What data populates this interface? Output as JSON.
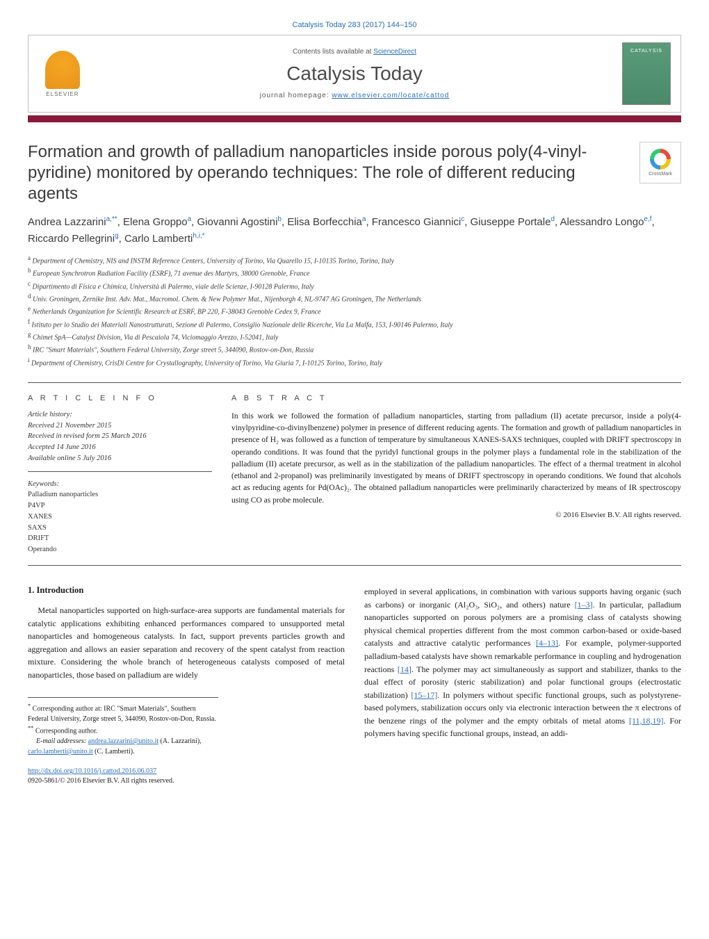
{
  "journal_ref": "Catalysis Today 283 (2017) 144–150",
  "header": {
    "contents_prefix": "Contents lists available at ",
    "contents_link": "ScienceDirect",
    "journal_name": "Catalysis Today",
    "homepage_prefix": "journal homepage: ",
    "homepage_link": "www.elsevier.com/locate/cattod",
    "elsevier_label": "ELSEVIER",
    "cover_title": "CATALYSIS"
  },
  "crossmark_label": "CrossMark",
  "title": "Formation and growth of palladium nanoparticles inside porous poly(4-vinyl-pyridine) monitored by operando techniques: The role of different reducing agents",
  "authors_html": "Andrea Lazzarini<sup>a,**</sup>, Elena Groppo<sup>a</sup>, Giovanni Agostini<sup>b</sup>, Elisa Borfecchia<sup>a</sup>, Francesco Giannici<sup>c</sup>, Giuseppe Portale<sup>d</sup>, Alessandro Longo<sup>e,f</sup>, Riccardo Pellegrini<sup>g</sup>, Carlo Lamberti<sup>h,i,*</sup>",
  "affiliations": [
    "Department of Chemistry, NIS and INSTM Reference Centers, University of Torino, Via Quarello 15, I-10135 Torino, Torino, Italy",
    "European Synchrotron Radiation Facility (ESRF), 71 avenue des Martyrs, 38000 Grenoble, France",
    "Dipartimento di Fisica e Chimica, Università di Palermo, viale delle Scienze, I-90128 Palermo, Italy",
    "Univ. Groningen, Zernike Inst. Adv. Mat., Macromol. Chem. & New Polymer Mat., Nijenborgh 4, NL-9747 AG Groningen, The Netherlands",
    "Netherlands Organization for Scientific Research at ESRF, BP 220, F-38043 Grenoble Cedex 9, France",
    "Istituto per lo Studio dei Materiali Nanostrutturati, Sezione di Palermo, Consiglio Nazionale delle Ricerche, Via La Malfa, 153, I-90146 Palermo, Italy",
    "Chimet SpA—Catalyst Division, Via di Pescaiola 74, Viciomaggio Arezzo, I-52041, Italy",
    "IRC \"Smart Materials\", Southern Federal University, Zorge street 5, 344090, Rostov-on-Don, Russia",
    "Department of Chemistry, CrisDi Centre for Crystallography, University of Torino, Via Giuria 7, I-10125 Torino, Torino, Italy"
  ],
  "aff_labels": [
    "a",
    "b",
    "c",
    "d",
    "e",
    "f",
    "g",
    "h",
    "i"
  ],
  "article_info": {
    "label": "A R T I C L E   I N F O",
    "history_hdr": "Article history:",
    "received": "Received 21 November 2015",
    "revised": "Received in revised form 25 March 2016",
    "accepted": "Accepted 14 June 2016",
    "online": "Available online 5 July 2016",
    "keywords_hdr": "Keywords:",
    "keywords": [
      "Palladium nanoparticles",
      "P4VP",
      "XANES",
      "SAXS",
      "DRIFT",
      "Operando"
    ]
  },
  "abstract": {
    "label": "A B S T R A C T",
    "text": "In this work we followed the formation of palladium nanoparticles, starting from palladium (II) acetate precursor, inside a poly(4-vinylpyridine-co-divinylbenzene) polymer in presence of different reducing agents. The formation and growth of palladium nanoparticles in presence of H₂ was followed as a function of temperature by simultaneous XANES-SAXS techniques, coupled with DRIFT spectroscopy in operando conditions. It was found that the pyridyl functional groups in the polymer plays a fundamental role in the stabilization of the palladium (II) acetate precursor, as well as in the stabilization of the palladium nanoparticles. The effect of a thermal treatment in alcohol (ethanol and 2-propanol) was preliminarily investigated by means of DRIFT spectroscopy in operando conditions. We found that alcohols act as reducing agents for Pd(OAc)₂. The obtained palladium nanoparticles were preliminarily characterized by means of IR spectroscopy using CO as probe molecule.",
    "copyright": "© 2016 Elsevier B.V. All rights reserved."
  },
  "intro": {
    "heading": "1. Introduction",
    "col1": "Metal nanoparticles supported on high-surface-area supports are fundamental materials for catalytic applications exhibiting enhanced performances compared to unsupported metal nanoparticles and homogeneous catalysts. In fact, support prevents particles growth and aggregation and allows an easier separation and recovery of the spent catalyst from reaction mixture. Considering the whole branch of heterogeneous catalysts composed of metal nanoparticles, those based on palladium are widely",
    "col2_a": "employed in several applications, in combination with various supports having organic (such as carbons) or inorganic (Al₂O₃, SiO₂, and others) nature ",
    "col2_ref1": "[1–3]",
    "col2_b": ". In particular, palladium nanoparticles supported on porous polymers are a promising class of catalysts showing physical chemical properties different from the most common carbon-based or oxide-based catalysts and attractive catalytic performances ",
    "col2_ref2": "[4–13]",
    "col2_c": ". For example, polymer-supported palladium-based catalysts have shown remarkable performance in coupling and hydrogenation reactions ",
    "col2_ref3": "[14]",
    "col2_d": ". The polymer may act simultaneously as support and stabilizer, thanks to the dual effect of porosity (steric stabilization) and polar functional groups (electrostatic stabilization) ",
    "col2_ref4": "[15–17]",
    "col2_e": ". In polymers without specific functional groups, such as polystyrene-based polymers, stabilization occurs only via electronic interaction between the π electrons of the benzene rings of the polymer and the empty orbitals of metal atoms ",
    "col2_ref5": "[11,18,19]",
    "col2_f": ". For polymers having specific functional groups, instead, an addi-"
  },
  "footnotes": {
    "f1_label": "*",
    "f1": " Corresponding author at: IRC \"Smart Materials\", Southern Federal University, Zorge street 5, 344090, Rostov-on-Don, Russia.",
    "f2_label": "**",
    "f2": " Corresponding author.",
    "email_label": "E-mail addresses: ",
    "email1": "andrea.lazzarini@unito.it",
    "email1_paren": " (A. Lazzarini), ",
    "email2": "carlo.lamberti@unito.it",
    "email2_paren": " (C. Lamberti)."
  },
  "doi": {
    "link": "http://dx.doi.org/10.1016/j.cattod.2016.06.037",
    "issn": "0920-5861/© 2016 Elsevier B.V. All rights reserved."
  },
  "colors": {
    "accent_bar": "#8b1a3a",
    "link": "#2a6ebb",
    "cover_bg": "#5a9b7a"
  }
}
